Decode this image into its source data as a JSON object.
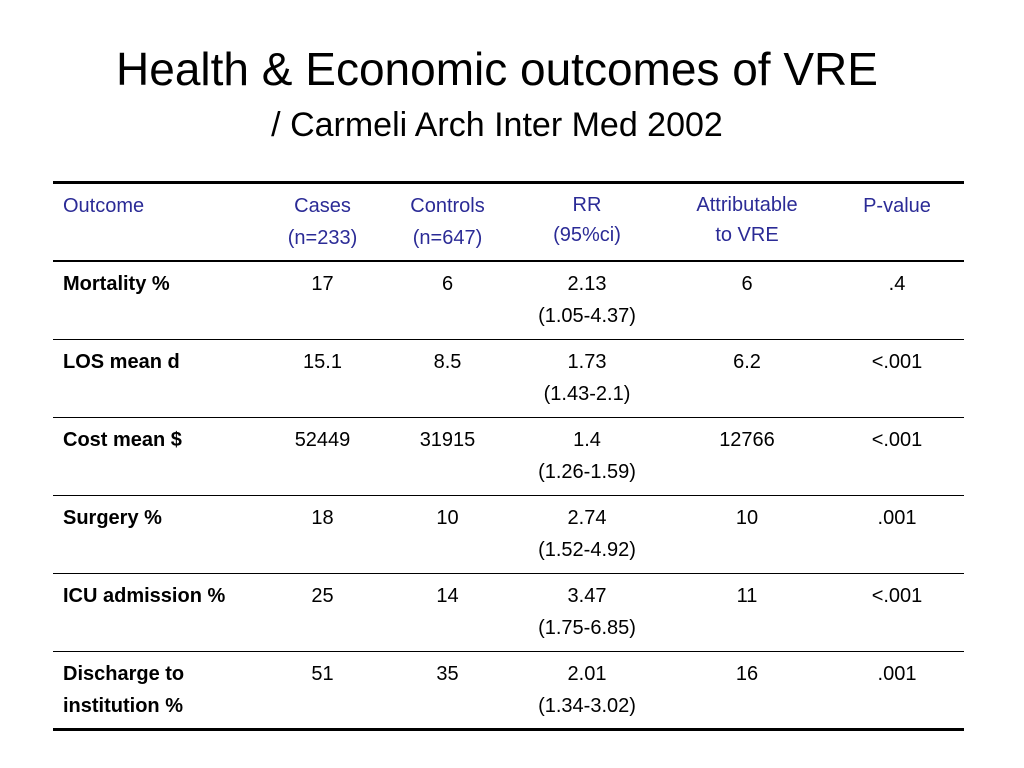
{
  "slide": {
    "title": "Health & Economic outcomes of VRE",
    "subtitle": "/ Carmeli Arch Inter Med 2002"
  },
  "table": {
    "headers": [
      {
        "line1": "Outcome",
        "line2": ""
      },
      {
        "line1": "Cases",
        "line2": "(n=233)"
      },
      {
        "line1": "Controls",
        "line2": "(n=647)"
      },
      {
        "line1": "RR",
        "line2": "(95%ci)"
      },
      {
        "line1": "Attributable",
        "line2": "to VRE"
      },
      {
        "line1": "P-value",
        "line2": ""
      }
    ],
    "rows": [
      {
        "label": "Mortality %",
        "cases": "17",
        "controls": "6",
        "rr": "2.13",
        "ci": "(1.05-4.37)",
        "attributable": "6",
        "p": ".4"
      },
      {
        "label": "LOS mean d",
        "cases": "15.1",
        "controls": "8.5",
        "rr": "1.73",
        "ci": "(1.43-2.1)",
        "attributable": "6.2",
        "p": "<.001"
      },
      {
        "label": "Cost mean $",
        "cases": "52449",
        "controls": "31915",
        "rr": "1.4",
        "ci": "(1.26-1.59)",
        "attributable": "12766",
        "p": "<.001"
      },
      {
        "label": "Surgery %",
        "cases": "18",
        "controls": "10",
        "rr": "2.74",
        "ci": "(1.52-4.92)",
        "attributable": "10",
        "p": ".001"
      },
      {
        "label": "ICU admission %",
        "cases": "25",
        "controls": "14",
        "rr": "3.47",
        "ci": "(1.75-6.85)",
        "attributable": "11",
        "p": "<.001"
      },
      {
        "label": "Discharge to institution %",
        "cases": "51",
        "controls": "35",
        "rr": "2.01",
        "ci": "(1.34-3.02)",
        "attributable": "16",
        "p": ".001"
      }
    ]
  },
  "colors": {
    "header_text": "#2b2b96",
    "body_text": "#000000",
    "background": "#ffffff"
  }
}
